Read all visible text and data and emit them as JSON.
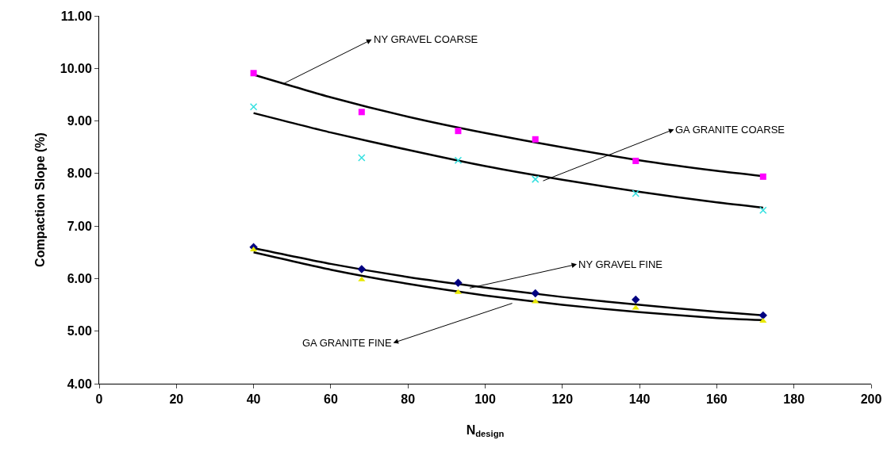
{
  "chart_data": {
    "type": "scatter",
    "xlabel": "N$_{design}$",
    "ylabel": "Compaction Slope (%)",
    "xlim": [
      0,
      200
    ],
    "xticks": [
      0,
      20,
      40,
      60,
      80,
      100,
      120,
      140,
      160,
      180,
      200
    ],
    "ylim": [
      4,
      11
    ],
    "yticks": [
      {
        "value": 4,
        "label": "4.00"
      },
      {
        "value": 5,
        "label": "5.00"
      },
      {
        "value": 6,
        "label": "6.00"
      },
      {
        "value": 7,
        "label": "7.00"
      },
      {
        "value": 8,
        "label": "8.00"
      },
      {
        "value": 9,
        "label": "9.00"
      },
      {
        "value": 10,
        "label": "10.00"
      },
      {
        "value": 11,
        "label": "11.00"
      }
    ],
    "x": [
      40,
      68,
      93,
      113,
      139,
      172
    ],
    "series": [
      {
        "color": "#ff00ff",
        "marker": "square",
        "values": [
          9.91,
          9.17,
          8.81,
          8.65,
          8.24,
          7.94
        ]
      },
      {
        "color": "#33e0e0",
        "marker": "cross",
        "values": [
          9.27,
          8.3,
          8.25,
          7.89,
          7.62,
          7.3
        ]
      },
      {
        "color": "#000080",
        "marker": "diamond",
        "values": [
          6.6,
          6.18,
          5.92,
          5.72,
          5.6,
          5.3
        ]
      },
      {
        "color": "#e8e800",
        "marker": "triangle",
        "values": [
          6.55,
          5.98,
          5.74,
          5.56,
          5.44,
          5.19
        ]
      },
      {
        "type": "line",
        "color": "#000000",
        "marker": "none",
        "x": [
          40,
          60,
          80,
          100,
          120,
          140,
          160,
          172
        ],
        "values": [
          9.88,
          9.45,
          9.08,
          8.77,
          8.5,
          8.25,
          8.05,
          7.95
        ]
      },
      {
        "type": "line",
        "color": "#000000",
        "marker": "none",
        "x": [
          40,
          60,
          80,
          100,
          120,
          140,
          160,
          172
        ],
        "values": [
          9.15,
          8.78,
          8.45,
          8.14,
          7.88,
          7.65,
          7.45,
          7.35
        ]
      },
      {
        "type": "line",
        "color": "#000000",
        "marker": "none",
        "x": [
          40,
          60,
          80,
          100,
          120,
          140,
          160,
          172
        ],
        "values": [
          6.58,
          6.28,
          6.03,
          5.83,
          5.65,
          5.5,
          5.37,
          5.3
        ]
      },
      {
        "type": "line",
        "color": "#000000",
        "marker": "none",
        "x": [
          40,
          60,
          80,
          100,
          120,
          140,
          160,
          172
        ],
        "values": [
          6.5,
          6.17,
          5.9,
          5.68,
          5.5,
          5.36,
          5.25,
          5.21
        ]
      }
    ],
    "annotations": [
      {
        "text": "NY GRAVEL COARSE",
        "x": 48,
        "y": 9.72
      },
      {
        "text": "GA GRANITE COARSE",
        "x": 115,
        "y": 7.86
      },
      {
        "text": "NY GRAVEL FINE",
        "x": 96,
        "y": 5.82
      },
      {
        "text": "GA GRANITE FINE",
        "x": 107,
        "y": 5.53
      }
    ]
  }
}
